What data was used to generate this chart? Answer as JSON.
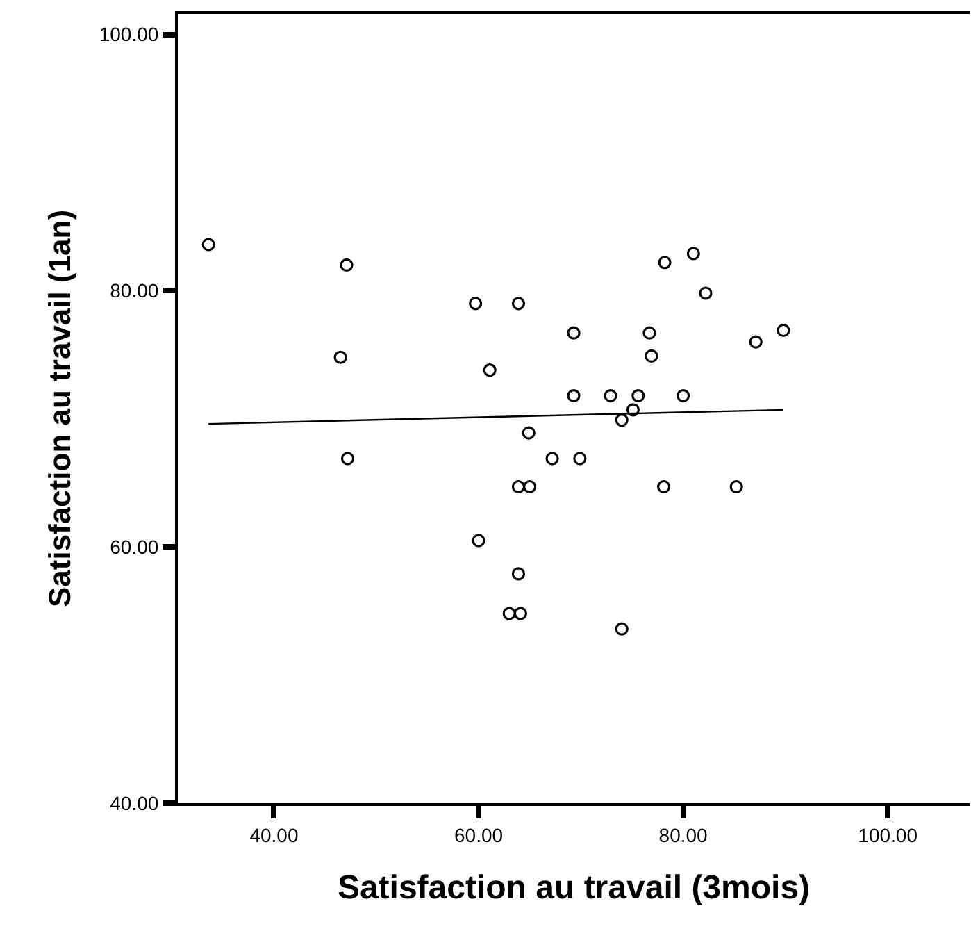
{
  "chart_data": {
    "type": "scatter",
    "xlabel": "Satisfaction au travail (3mois)",
    "ylabel": "Satisfaction au travail (1an)",
    "xlim": [
      30.6,
      108
    ],
    "ylim": [
      40,
      101.6
    ],
    "xticks": [
      {
        "value": 40,
        "label": "40.00"
      },
      {
        "value": 60,
        "label": "60.00"
      },
      {
        "value": 80,
        "label": "80.00"
      },
      {
        "value": 100,
        "label": "100.00"
      }
    ],
    "yticks": [
      {
        "value": 40,
        "label": "40.00"
      },
      {
        "value": 60,
        "label": "60.00"
      },
      {
        "value": 80,
        "label": "80.00"
      },
      {
        "value": 100,
        "label": "100.00"
      }
    ],
    "marker": "circle",
    "series": [
      {
        "color": "#000000",
        "x": [
          33.6,
          47.1,
          46.5,
          47.2,
          59.7,
          61.1,
          63.9,
          69.3,
          69.3,
          64.9,
          67.2,
          69.9,
          63.9,
          65.0,
          60.0,
          63.9,
          63.0,
          64.1,
          74.0,
          72.9,
          75.6,
          80.0,
          74.0,
          75.1,
          78.2,
          81.0,
          82.2,
          76.7,
          76.9,
          87.1,
          89.8,
          78.1,
          85.2
        ],
        "values": [
          83.6,
          82.0,
          74.8,
          66.9,
          79.0,
          73.8,
          79.0,
          76.7,
          71.8,
          68.9,
          66.9,
          66.9,
          64.7,
          64.7,
          60.5,
          57.9,
          54.8,
          54.8,
          53.6,
          71.8,
          71.8,
          71.8,
          69.9,
          70.7,
          82.2,
          82.9,
          79.8,
          76.7,
          74.9,
          76.0,
          76.9,
          64.7,
          64.7
        ]
      },
      {
        "type": "line",
        "color": "#000000",
        "marker": "none",
        "x": [
          33.6,
          89.8
        ],
        "values": [
          69.6,
          70.7
        ]
      }
    ]
  }
}
